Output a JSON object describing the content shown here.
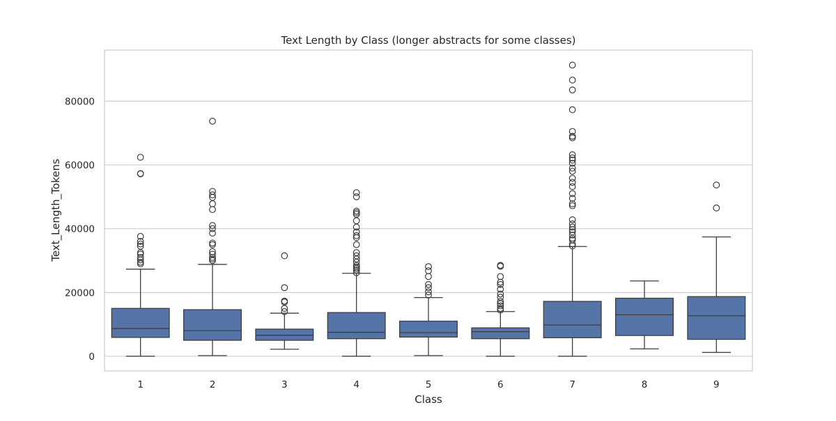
{
  "chart_data": {
    "type": "box",
    "title": "Text Length by Class (longer abstracts for some classes)",
    "xlabel": "Class",
    "ylabel": "Text_Length_Tokens",
    "ylim": [
      -4600,
      96000
    ],
    "yticks": [
      0,
      20000,
      40000,
      60000,
      80000
    ],
    "ytick_labels": [
      "0",
      "20000",
      "40000",
      "60000",
      "80000"
    ],
    "grid": "horizontal",
    "categories": [
      "1",
      "2",
      "3",
      "4",
      "5",
      "6",
      "7",
      "8",
      "9"
    ],
    "boxes": [
      {
        "category": "1",
        "whisker_low": 0,
        "q1": 5900,
        "median": 8700,
        "q3": 15000,
        "whisker_high": 27300,
        "outliers": [
          29000,
          29500,
          30200,
          31000,
          32000,
          32500,
          34500,
          35200,
          36000,
          37600,
          57200,
          57300,
          62400
        ]
      },
      {
        "category": "2",
        "whisker_low": 200,
        "q1": 5000,
        "median": 8000,
        "q3": 14600,
        "whisker_high": 28800,
        "outliers": [
          30000,
          30500,
          31000,
          32000,
          32800,
          35000,
          35500,
          38600,
          40000,
          41000,
          46000,
          47800,
          49800,
          50600,
          51700,
          73700
        ]
      },
      {
        "category": "3",
        "whisker_low": 2200,
        "q1": 5000,
        "median": 6600,
        "q3": 8500,
        "whisker_high": 13500,
        "outliers": [
          14000,
          15000,
          17000,
          17300,
          21500,
          31500
        ]
      },
      {
        "category": "4",
        "whisker_low": 0,
        "q1": 5500,
        "median": 7500,
        "q3": 13700,
        "whisker_high": 26000,
        "outliers": [
          26200,
          27000,
          27500,
          28000,
          28500,
          29500,
          30500,
          31500,
          32500,
          35000,
          37200,
          37800,
          39000,
          40500,
          42500,
          44500,
          45000,
          45500,
          50000,
          51300
        ]
      },
      {
        "category": "5",
        "whisker_low": 200,
        "q1": 6000,
        "median": 7400,
        "q3": 11000,
        "whisker_high": 18400,
        "outliers": [
          19200,
          20200,
          21500,
          22500,
          25000,
          26800,
          28100
        ]
      },
      {
        "category": "6",
        "whisker_low": 0,
        "q1": 5500,
        "median": 7700,
        "q3": 8900,
        "whisker_high": 14000,
        "outliers": [
          14500,
          15000,
          15800,
          16500,
          17200,
          18500,
          19500,
          21000,
          22500,
          23200,
          25000,
          28200,
          28500
        ]
      },
      {
        "category": "7",
        "whisker_low": 0,
        "q1": 5800,
        "median": 9800,
        "q3": 17200,
        "whisker_high": 34400,
        "outliers": [
          34600,
          35200,
          36500,
          37000,
          38000,
          39000,
          39700,
          40500,
          41500,
          42800,
          47200,
          47800,
          49500,
          51000,
          53200,
          54500,
          55800,
          58000,
          59000,
          60500,
          61500,
          62200,
          63200,
          68500,
          69000,
          70500,
          77300,
          83500,
          86600,
          91300
        ]
      },
      {
        "category": "8",
        "whisker_low": 2300,
        "q1": 6500,
        "median": 13000,
        "q3": 18200,
        "whisker_high": 23600,
        "outliers": []
      },
      {
        "category": "9",
        "whisker_low": 1200,
        "q1": 5300,
        "median": 12700,
        "q3": 18700,
        "whisker_high": 37400,
        "outliers": [
          46500,
          53700
        ]
      }
    ],
    "colors": {
      "box_fill": "#5574a8",
      "line": "#3d3d3d",
      "grid": "#cccccc",
      "frame": "#cccccc"
    }
  }
}
